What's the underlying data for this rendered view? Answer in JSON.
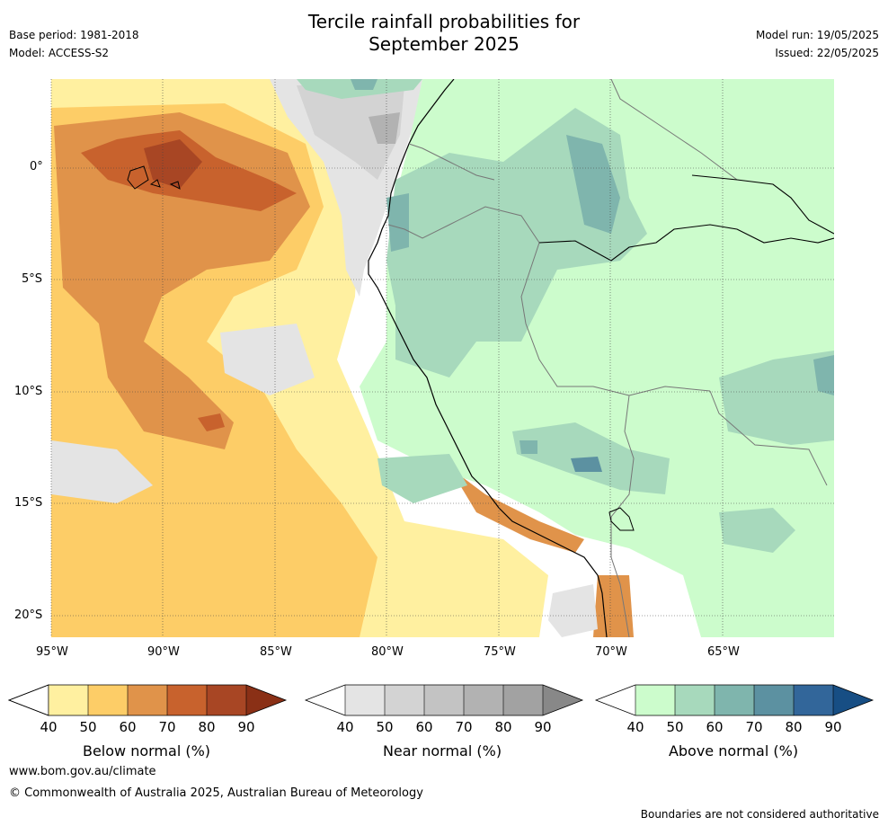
{
  "header": {
    "title_line1": "Tercile rainfall probabilities for",
    "title_line2": "September 2025",
    "base_period": "Base period: 1981-2018",
    "model": "Model: ACCESS-S2",
    "model_run": "Model run: 19/05/2025",
    "issued": "Issued: 22/05/2025"
  },
  "map": {
    "lat_labels": [
      "0°",
      "5°S",
      "10°S",
      "15°S",
      "20°S"
    ],
    "lon_labels": [
      "95°W",
      "90°W",
      "85°W",
      "80°W",
      "75°W",
      "70°W",
      "65°W"
    ],
    "gridlines": true
  },
  "colorbars": [
    {
      "label": "Below normal (%)",
      "ticks": [
        "40",
        "50",
        "60",
        "70",
        "80",
        "90"
      ],
      "colors": [
        "#fff0a0",
        "#fdcd67",
        "#e0934a",
        "#c8622d",
        "#a84624",
        "#8a3016"
      ]
    },
    {
      "label": "Near normal (%)",
      "ticks": [
        "40",
        "50",
        "60",
        "70",
        "80",
        "90"
      ],
      "colors": [
        "#e4e4e4",
        "#d3d3d3",
        "#c3c3c3",
        "#b2b2b2",
        "#a2a2a2",
        "#888888"
      ]
    },
    {
      "label": "Above normal (%)",
      "ticks": [
        "40",
        "50",
        "60",
        "70",
        "80",
        "90"
      ],
      "colors": [
        "#ccfccc",
        "#a7d9bc",
        "#7fb5ad",
        "#5c91a1",
        "#32669a",
        "#174e84"
      ]
    }
  ],
  "footer": {
    "url": "www.bom.gov.au/climate",
    "copyright": "© Commonwealth of Australia 2025, Australian Bureau of Meteorology",
    "disclaimer": "Boundaries are not considered authoritative"
  }
}
